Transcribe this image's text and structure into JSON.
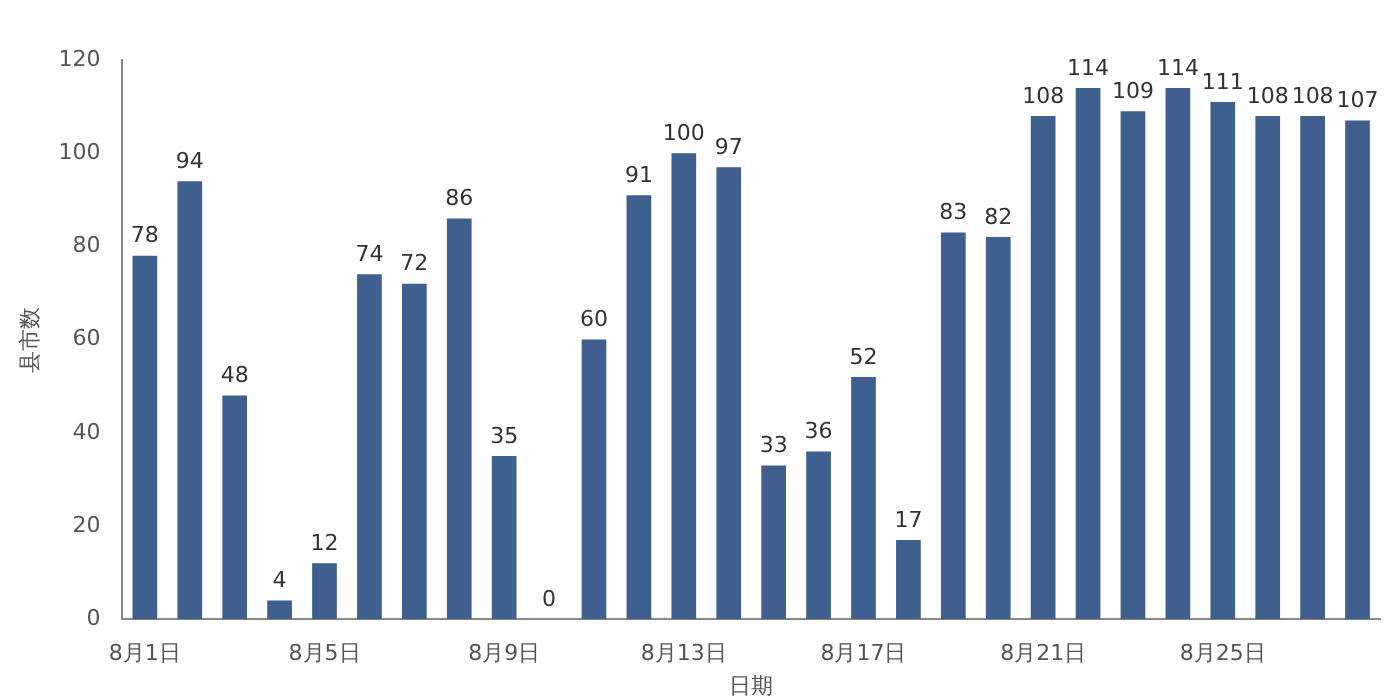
{
  "chart_data": {
    "type": "bar",
    "xlabel": "日期",
    "ylabel": "县市数",
    "categories": [
      "8月1日",
      null,
      null,
      null,
      "8月5日",
      null,
      null,
      null,
      "8月9日",
      null,
      null,
      null,
      "8月13日",
      null,
      null,
      null,
      "8月17日",
      null,
      null,
      null,
      "8月21日",
      null,
      null,
      null,
      "8月25日",
      null,
      null,
      null
    ],
    "values": [
      78,
      94,
      48,
      4,
      12,
      74,
      72,
      86,
      35,
      0,
      60,
      91,
      100,
      97,
      33,
      36,
      52,
      17,
      83,
      82,
      108,
      114,
      109,
      114,
      111,
      108,
      108,
      107
    ],
    "color": "#3f5f8f",
    "ylim": [
      0,
      120
    ],
    "yticks": [
      0,
      20,
      40,
      60,
      80,
      100,
      120
    ],
    "grid": false,
    "legend": false,
    "data_labels": true
  }
}
